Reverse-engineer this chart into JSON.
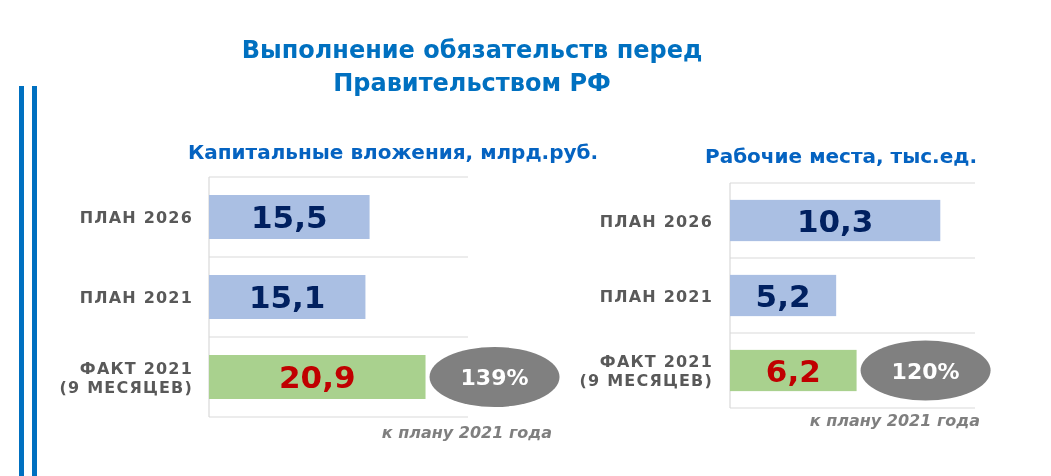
{
  "chart_data": [
    {
      "type": "bar",
      "orientation": "horizontal",
      "title": "Выполнение обязательств перед\nПравительством РФ",
      "subtitle": "Капитальные вложения, млрд.руб.",
      "categories": [
        "ПЛАН 2026",
        "ПЛАН 2021",
        "ФАКТ 2021\n(9 МЕСЯЦЕВ)"
      ],
      "values": [
        15.5,
        15.1,
        20.9
      ],
      "colors": [
        "#aabfe3",
        "#aabfe3",
        "#a9d18e"
      ],
      "value_labels": [
        "15,5",
        "15,1",
        "20,9"
      ],
      "xlim": [
        0,
        25
      ],
      "grid": "y",
      "tick_labels": "y",
      "annotations": [
        "139%",
        "к плану 2021 года"
      ]
    },
    {
      "type": "bar",
      "orientation": "horizontal",
      "subtitle": "Рабочие места, тыс.ед.",
      "categories": [
        "ПЛАН 2026",
        "ПЛАН 2021",
        "ФАКТ 2021\n(9 МЕСЯЦЕВ)"
      ],
      "values": [
        10.3,
        5.2,
        6.2
      ],
      "colors": [
        "#aabfe3",
        "#aabfe3",
        "#a9d18e"
      ],
      "value_labels": [
        "10,3",
        "5,2",
        "6,2"
      ],
      "xlim": [
        0,
        12
      ],
      "grid": "y",
      "tick_labels": "y",
      "annotations": [
        "120%",
        "к плану 2021 года"
      ]
    }
  ]
}
